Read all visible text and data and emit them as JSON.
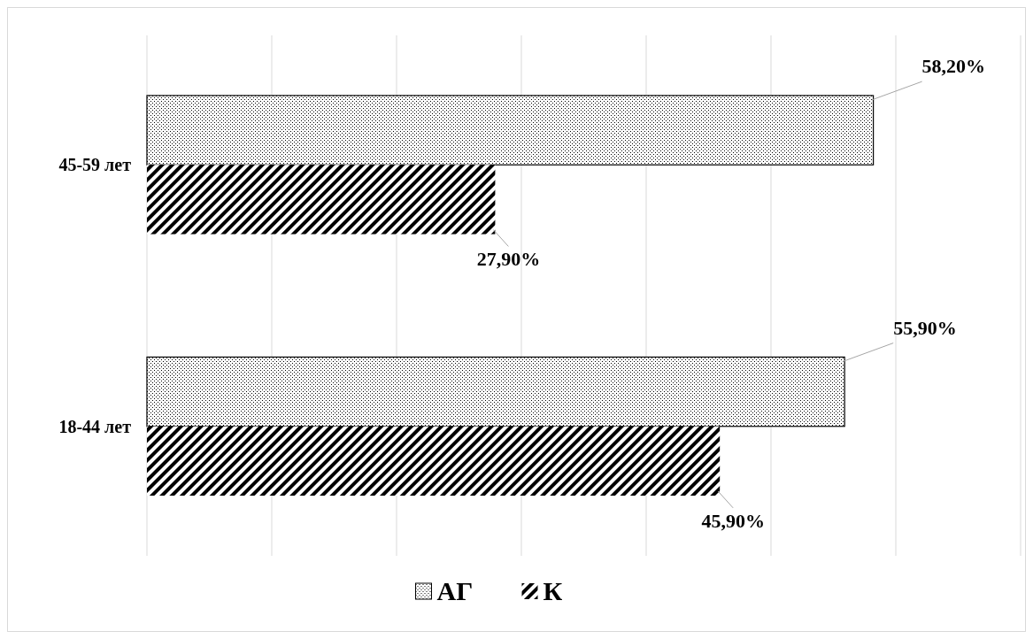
{
  "chart_data": {
    "type": "bar",
    "orientation": "horizontal",
    "categories": [
      "45-59 лет",
      "18-44 лет"
    ],
    "series": [
      {
        "name": "АГ",
        "color": "#000000",
        "values": [
          58.2,
          55.9
        ],
        "value_labels": [
          "58,20%",
          "55,90%"
        ]
      },
      {
        "name": "К",
        "color": "#000000",
        "values": [
          27.9,
          45.9
        ],
        "value_labels": [
          "27,90%",
          "45,90%"
        ]
      }
    ],
    "xlim": [
      0,
      70
    ],
    "xticks": [
      {
        "value": 0,
        "label": null
      },
      {
        "value": 10,
        "label": null
      },
      {
        "value": 20,
        "label": null
      },
      {
        "value": 30,
        "label": null
      },
      {
        "value": 40,
        "label": null
      },
      {
        "value": 50,
        "label": null
      },
      {
        "value": 60,
        "label": null
      },
      {
        "value": 70,
        "label": null
      }
    ],
    "grid": "x",
    "tick_labels": "y",
    "legend": "bottom"
  }
}
